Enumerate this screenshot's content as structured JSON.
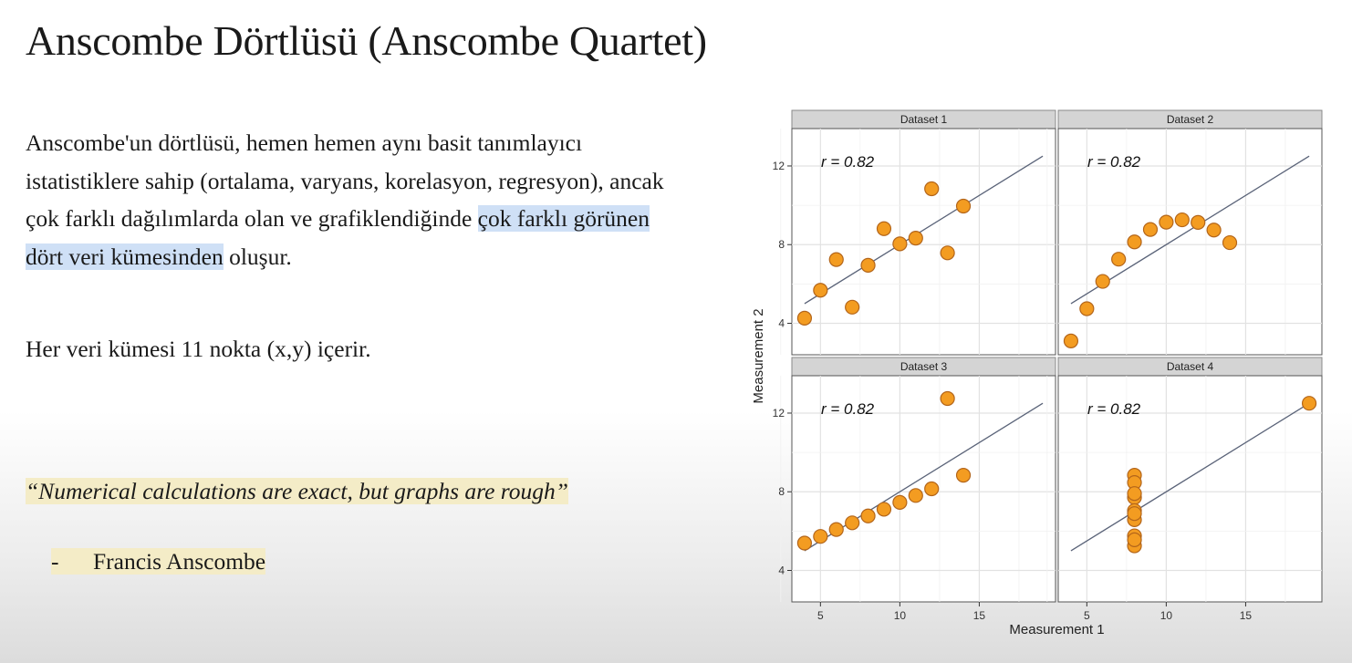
{
  "slide": {
    "title": "Anscombe Dörtlüsü (Anscombe Quartet)",
    "intro_part1": "Anscombe'un dörtlüsü, hemen hemen aynı basit tanımlayıcı istatistiklere sahip (ortalama, varyans, korelasyon, regresyon), ancak çok farklı dağılımlarda olan ve grafiklendiğinde ",
    "intro_highlight": "çok farklı görünen dört veri kümesinden",
    "intro_part2": " oluşur.",
    "count_text": "Her veri kümesi 11 nokta (x,y) içerir.",
    "quote_text": "“Numerical calculations are exact, but graphs are rough”",
    "attribution_dash": "-",
    "attribution_name": "Francis Anscombe"
  },
  "chart_data": {
    "type": "scatter",
    "xlabel": "Measurement 1",
    "ylabel": "Measurement 2",
    "xlim": [
      3.2,
      19.8
    ],
    "ylim": [
      2.4,
      13.9
    ],
    "x_ticks": [
      5,
      10,
      15
    ],
    "y_ticks": [
      4,
      8,
      12
    ],
    "grid": true,
    "point_color": "#f39c21",
    "point_stroke": "#b3651a",
    "line_color": "#5a6378",
    "strip_color": "#d4d4d4",
    "fit_line": {
      "intercept": 3.0,
      "slope": 0.5
    },
    "panels": [
      {
        "name": "Dataset 1",
        "annotation": "r = 0.82",
        "x": [
          10,
          8,
          13,
          9,
          11,
          14,
          6,
          4,
          12,
          7,
          5
        ],
        "y": [
          8.04,
          6.95,
          7.58,
          8.81,
          8.33,
          9.96,
          7.24,
          4.26,
          10.84,
          4.82,
          5.68
        ]
      },
      {
        "name": "Dataset 2",
        "annotation": "r = 0.82",
        "x": [
          10,
          8,
          13,
          9,
          11,
          14,
          6,
          4,
          12,
          7,
          5
        ],
        "y": [
          9.14,
          8.14,
          8.74,
          8.77,
          9.26,
          8.1,
          6.13,
          3.1,
          9.13,
          7.26,
          4.74
        ]
      },
      {
        "name": "Dataset 3",
        "annotation": "r = 0.82",
        "x": [
          10,
          8,
          13,
          9,
          11,
          14,
          6,
          4,
          12,
          7,
          5
        ],
        "y": [
          7.46,
          6.77,
          12.74,
          7.11,
          7.81,
          8.84,
          6.08,
          5.39,
          8.15,
          6.42,
          5.73
        ]
      },
      {
        "name": "Dataset 4",
        "annotation": "r = 0.82",
        "x": [
          8,
          8,
          8,
          8,
          8,
          8,
          8,
          19,
          8,
          8,
          8
        ],
        "y": [
          6.58,
          5.76,
          7.71,
          8.84,
          8.47,
          7.04,
          5.25,
          12.5,
          5.56,
          7.91,
          6.89
        ]
      }
    ]
  }
}
